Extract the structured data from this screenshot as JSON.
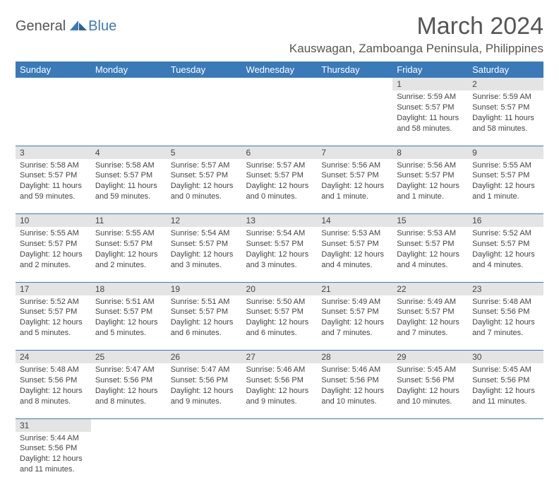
{
  "logo": {
    "general": "General",
    "blue": "Blue"
  },
  "title": "March 2024",
  "location": "Kauswagan, Zamboanga Peninsula, Philippines",
  "colors": {
    "header_bg": "#3a7ab8",
    "daynum_bg": "#e4e4e4",
    "rule": "#3a7ab8",
    "text": "#444444"
  },
  "dayNames": [
    "Sunday",
    "Monday",
    "Tuesday",
    "Wednesday",
    "Thursday",
    "Friday",
    "Saturday"
  ],
  "weeks": [
    [
      null,
      null,
      null,
      null,
      null,
      {
        "d": "1",
        "sr": "Sunrise: 5:59 AM",
        "ss": "Sunset: 5:57 PM",
        "dl": "Daylight: 11 hours and 58 minutes."
      },
      {
        "d": "2",
        "sr": "Sunrise: 5:59 AM",
        "ss": "Sunset: 5:57 PM",
        "dl": "Daylight: 11 hours and 58 minutes."
      }
    ],
    [
      {
        "d": "3",
        "sr": "Sunrise: 5:58 AM",
        "ss": "Sunset: 5:57 PM",
        "dl": "Daylight: 11 hours and 59 minutes."
      },
      {
        "d": "4",
        "sr": "Sunrise: 5:58 AM",
        "ss": "Sunset: 5:57 PM",
        "dl": "Daylight: 11 hours and 59 minutes."
      },
      {
        "d": "5",
        "sr": "Sunrise: 5:57 AM",
        "ss": "Sunset: 5:57 PM",
        "dl": "Daylight: 12 hours and 0 minutes."
      },
      {
        "d": "6",
        "sr": "Sunrise: 5:57 AM",
        "ss": "Sunset: 5:57 PM",
        "dl": "Daylight: 12 hours and 0 minutes."
      },
      {
        "d": "7",
        "sr": "Sunrise: 5:56 AM",
        "ss": "Sunset: 5:57 PM",
        "dl": "Daylight: 12 hours and 1 minute."
      },
      {
        "d": "8",
        "sr": "Sunrise: 5:56 AM",
        "ss": "Sunset: 5:57 PM",
        "dl": "Daylight: 12 hours and 1 minute."
      },
      {
        "d": "9",
        "sr": "Sunrise: 5:55 AM",
        "ss": "Sunset: 5:57 PM",
        "dl": "Daylight: 12 hours and 1 minute."
      }
    ],
    [
      {
        "d": "10",
        "sr": "Sunrise: 5:55 AM",
        "ss": "Sunset: 5:57 PM",
        "dl": "Daylight: 12 hours and 2 minutes."
      },
      {
        "d": "11",
        "sr": "Sunrise: 5:55 AM",
        "ss": "Sunset: 5:57 PM",
        "dl": "Daylight: 12 hours and 2 minutes."
      },
      {
        "d": "12",
        "sr": "Sunrise: 5:54 AM",
        "ss": "Sunset: 5:57 PM",
        "dl": "Daylight: 12 hours and 3 minutes."
      },
      {
        "d": "13",
        "sr": "Sunrise: 5:54 AM",
        "ss": "Sunset: 5:57 PM",
        "dl": "Daylight: 12 hours and 3 minutes."
      },
      {
        "d": "14",
        "sr": "Sunrise: 5:53 AM",
        "ss": "Sunset: 5:57 PM",
        "dl": "Daylight: 12 hours and 4 minutes."
      },
      {
        "d": "15",
        "sr": "Sunrise: 5:53 AM",
        "ss": "Sunset: 5:57 PM",
        "dl": "Daylight: 12 hours and 4 minutes."
      },
      {
        "d": "16",
        "sr": "Sunrise: 5:52 AM",
        "ss": "Sunset: 5:57 PM",
        "dl": "Daylight: 12 hours and 4 minutes."
      }
    ],
    [
      {
        "d": "17",
        "sr": "Sunrise: 5:52 AM",
        "ss": "Sunset: 5:57 PM",
        "dl": "Daylight: 12 hours and 5 minutes."
      },
      {
        "d": "18",
        "sr": "Sunrise: 5:51 AM",
        "ss": "Sunset: 5:57 PM",
        "dl": "Daylight: 12 hours and 5 minutes."
      },
      {
        "d": "19",
        "sr": "Sunrise: 5:51 AM",
        "ss": "Sunset: 5:57 PM",
        "dl": "Daylight: 12 hours and 6 minutes."
      },
      {
        "d": "20",
        "sr": "Sunrise: 5:50 AM",
        "ss": "Sunset: 5:57 PM",
        "dl": "Daylight: 12 hours and 6 minutes."
      },
      {
        "d": "21",
        "sr": "Sunrise: 5:49 AM",
        "ss": "Sunset: 5:57 PM",
        "dl": "Daylight: 12 hours and 7 minutes."
      },
      {
        "d": "22",
        "sr": "Sunrise: 5:49 AM",
        "ss": "Sunset: 5:57 PM",
        "dl": "Daylight: 12 hours and 7 minutes."
      },
      {
        "d": "23",
        "sr": "Sunrise: 5:48 AM",
        "ss": "Sunset: 5:56 PM",
        "dl": "Daylight: 12 hours and 7 minutes."
      }
    ],
    [
      {
        "d": "24",
        "sr": "Sunrise: 5:48 AM",
        "ss": "Sunset: 5:56 PM",
        "dl": "Daylight: 12 hours and 8 minutes."
      },
      {
        "d": "25",
        "sr": "Sunrise: 5:47 AM",
        "ss": "Sunset: 5:56 PM",
        "dl": "Daylight: 12 hours and 8 minutes."
      },
      {
        "d": "26",
        "sr": "Sunrise: 5:47 AM",
        "ss": "Sunset: 5:56 PM",
        "dl": "Daylight: 12 hours and 9 minutes."
      },
      {
        "d": "27",
        "sr": "Sunrise: 5:46 AM",
        "ss": "Sunset: 5:56 PM",
        "dl": "Daylight: 12 hours and 9 minutes."
      },
      {
        "d": "28",
        "sr": "Sunrise: 5:46 AM",
        "ss": "Sunset: 5:56 PM",
        "dl": "Daylight: 12 hours and 10 minutes."
      },
      {
        "d": "29",
        "sr": "Sunrise: 5:45 AM",
        "ss": "Sunset: 5:56 PM",
        "dl": "Daylight: 12 hours and 10 minutes."
      },
      {
        "d": "30",
        "sr": "Sunrise: 5:45 AM",
        "ss": "Sunset: 5:56 PM",
        "dl": "Daylight: 12 hours and 11 minutes."
      }
    ],
    [
      {
        "d": "31",
        "sr": "Sunrise: 5:44 AM",
        "ss": "Sunset: 5:56 PM",
        "dl": "Daylight: 12 hours and 11 minutes."
      },
      null,
      null,
      null,
      null,
      null,
      null
    ]
  ]
}
